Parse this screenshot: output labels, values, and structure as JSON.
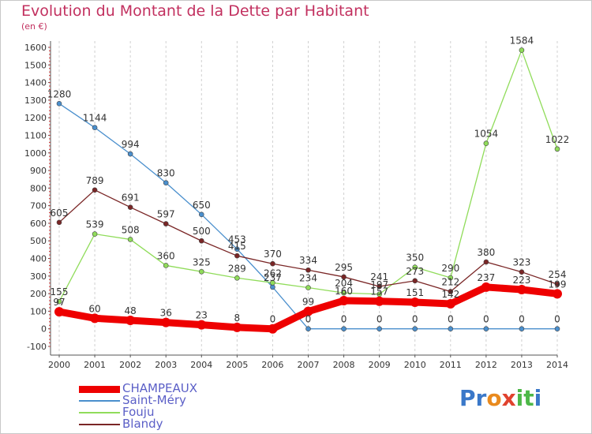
{
  "title": "Evolution du Montant de la Dette par Habitant",
  "subtitle": "(en €)",
  "logo": {
    "text": "Proxiti",
    "letters": [
      "P",
      "r",
      "o",
      "x",
      "i",
      "t",
      "i"
    ],
    "colors": [
      "#3a78c9",
      "#3a78c9",
      "#e98a1e",
      "#e0422e",
      "#4db848",
      "#4db848",
      "#3a78c9"
    ]
  },
  "chart_data": {
    "type": "line",
    "x": [
      "2000",
      "2001",
      "2002",
      "2003",
      "2004",
      "2005",
      "2006",
      "2007",
      "2008",
      "2009",
      "2010",
      "2011",
      "2012",
      "2013",
      "2014"
    ],
    "yticks": [
      "-100",
      "0",
      "100",
      "200",
      "300",
      "400",
      "500",
      "600",
      "700",
      "800",
      "900",
      "1000",
      "1100",
      "1200",
      "1300",
      "1400",
      "1500",
      "1600"
    ],
    "ylim": [
      -100,
      1600
    ],
    "grid": "vertical-dashed",
    "legend_position": "bottom-left",
    "series": [
      {
        "name": "CHAMPEAUX",
        "color": "#ee0000",
        "values": [
          97,
          60,
          48,
          36,
          23,
          8,
          0,
          99,
          160,
          157,
          151,
          142,
          237,
          223,
          199
        ],
        "labels": [
          "97",
          "60",
          "48",
          "36",
          "23",
          "8",
          "0",
          "99",
          "160",
          "157",
          "151",
          "142",
          "237",
          "223",
          "199"
        ]
      },
      {
        "name": "Saint-Méry",
        "color": "#4a8fcd",
        "values": [
          1280,
          1144,
          994,
          830,
          650,
          453,
          237,
          0,
          0,
          0,
          0,
          0,
          0,
          0,
          0
        ],
        "labels": [
          "1280",
          "1144",
          "994",
          "830",
          "650",
          "453",
          "237",
          "0",
          "0",
          "0",
          "0",
          "0",
          "0",
          "0",
          "0"
        ]
      },
      {
        "name": "Fouju",
        "color": "#90dc5a",
        "values": [
          155,
          539,
          508,
          360,
          325,
          289,
          262,
          234,
          204,
          197,
          350,
          290,
          1054,
          1584,
          1022
        ],
        "labels": [
          "155",
          "539",
          "508",
          "360",
          "325",
          "289",
          "262",
          "234",
          "204",
          "197",
          "350",
          "290",
          "1054",
          "1584",
          "1022"
        ]
      },
      {
        "name": "Blandy",
        "color": "#7a2626",
        "values": [
          605,
          789,
          691,
          597,
          500,
          415,
          370,
          334,
          295,
          241,
          273,
          212,
          380,
          323,
          254
        ],
        "labels": [
          "605",
          "789",
          "691",
          "597",
          "500",
          "415",
          "370",
          "334",
          "295",
          "241",
          "273",
          "212",
          "380",
          "323",
          "254"
        ]
      }
    ]
  }
}
